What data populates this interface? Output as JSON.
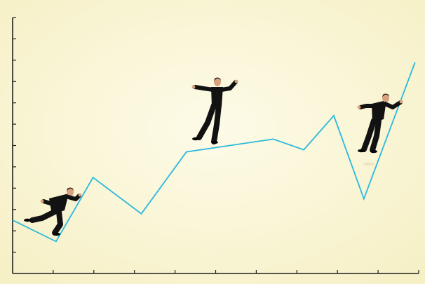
{
  "scene": {
    "background_color": "#fbf8dc",
    "axis_color": "#1f1f1f",
    "line_color": "#2bb9dc",
    "figure_color": "#121212",
    "skin_color": "#d8a27f",
    "chart_data": {
      "type": "line",
      "title": "",
      "xlabel": "",
      "ylabel": "",
      "grid": false,
      "xlim": [
        0,
        10
      ],
      "ylim": [
        0,
        12
      ],
      "y_tick_count": 12,
      "x_tick_count": 10,
      "x": [
        0,
        1.07,
        1.98,
        3.17,
        4.28,
        6.42,
        7.17,
        7.91,
        8.65,
        9.91
      ],
      "series": [
        {
          "values": [
            2.5,
            1.5,
            4.5,
            2.8,
            5.7,
            6.3,
            5.8,
            7.4,
            3.5,
            9.9
          ]
        }
      ]
    },
    "figures": [
      {
        "name": "crouching-businessman",
        "pose": "crouch"
      },
      {
        "name": "balancing-businessman",
        "pose": "balance"
      },
      {
        "name": "leaping-businessman",
        "pose": "leap"
      }
    ]
  }
}
